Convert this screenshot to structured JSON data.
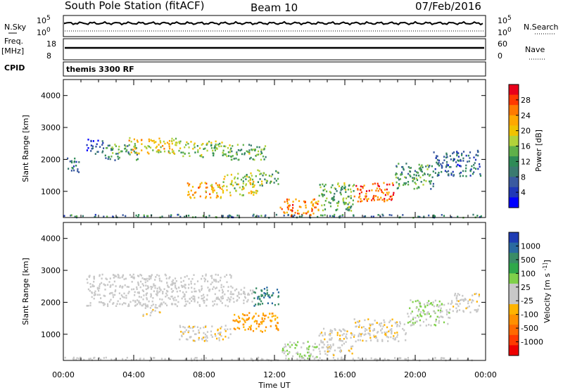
{
  "header": {
    "title": "South Pole Station (fitACF)",
    "beam": "Beam 10",
    "date": "07/Feb/2016"
  },
  "panels": {
    "nsky": {
      "label": "N.Sky",
      "left_ticks": [
        "10^5",
        "10^0"
      ],
      "right_label": "N.Search",
      "right_ticks": [
        "10^5",
        "10^0"
      ]
    },
    "freq": {
      "label_top": "Freq.",
      "label_unit": "[MHz]",
      "left_ticks": [
        "18",
        "8"
      ],
      "right_label": "Nave",
      "right_ticks": [
        "60",
        "0"
      ]
    },
    "cpid": {
      "label": "CPID",
      "value": "themis 3300 RF"
    }
  },
  "colorbars": {
    "power": {
      "label": "Power [dB]",
      "ticks": [
        "28",
        "24",
        "20",
        "16",
        "12",
        "8",
        "4"
      ],
      "colors": [
        "#e8001a",
        "#ff3a00",
        "#ff7a00",
        "#ffa800",
        "#f0c200",
        "#b2d23a",
        "#5fb04a",
        "#2e8b57",
        "#3a7a70",
        "#3a5aa0",
        "#2038b8",
        "#0000ff"
      ]
    },
    "velocity": {
      "label": "Velocity [m s^-1]",
      "ticks": [
        "1000",
        "500",
        "100",
        "25",
        "-25",
        "-100",
        "-500",
        "-1000"
      ],
      "colors": [
        "#1e3cb4",
        "#2a6aa0",
        "#3a8c66",
        "#2fa84a",
        "#7fd04a",
        "#c8c8c8",
        "#c8c8c8",
        "#ffb400",
        "#ff9000",
        "#ff6a00",
        "#ff3a00",
        "#ee0000"
      ]
    }
  },
  "axes": {
    "ylabel": "Slant Range [km]",
    "yticks": [
      "4000",
      "3000",
      "2000",
      "1000"
    ],
    "xticks": [
      "00:00",
      "04:00",
      "08:00",
      "12:00",
      "16:00",
      "20:00",
      "00:00"
    ],
    "xlabel": "Time UT"
  },
  "chart_data": [
    {
      "type": "heatmap",
      "name": "Power",
      "x_range_hours": [
        0,
        24
      ],
      "y_range_km": [
        180,
        4500
      ],
      "value_unit": "dB",
      "blobs": [
        {
          "t0": 0.2,
          "t1": 0.9,
          "r0": 1600,
          "r1": 2100,
          "value": 8
        },
        {
          "t0": 1.3,
          "t1": 2.3,
          "r0": 2200,
          "r1": 2650,
          "value": 6
        },
        {
          "t0": 2.3,
          "t1": 4.2,
          "r0": 2000,
          "r1": 2500,
          "value": 12
        },
        {
          "t0": 3.7,
          "t1": 6.5,
          "r0": 2200,
          "r1": 2700,
          "value": 20
        },
        {
          "t0": 6.5,
          "t1": 9.5,
          "r0": 2100,
          "r1": 2600,
          "value": 16
        },
        {
          "t0": 9.5,
          "t1": 11.5,
          "r0": 2000,
          "r1": 2500,
          "value": 14
        },
        {
          "t0": 7.0,
          "t1": 9.0,
          "r0": 800,
          "r1": 1300,
          "value": 22
        },
        {
          "t0": 9.0,
          "t1": 11.0,
          "r0": 900,
          "r1": 1600,
          "value": 18
        },
        {
          "t0": 11.0,
          "t1": 12.2,
          "r0": 1200,
          "r1": 1700,
          "value": 14
        },
        {
          "t0": 12.3,
          "t1": 14.5,
          "r0": 250,
          "r1": 800,
          "value": 24
        },
        {
          "t0": 14.5,
          "t1": 16.5,
          "r0": 400,
          "r1": 1300,
          "value": 14
        },
        {
          "t0": 16.5,
          "t1": 18.8,
          "r0": 700,
          "r1": 1300,
          "value": 26
        },
        {
          "t0": 18.8,
          "t1": 21.0,
          "r0": 1100,
          "r1": 1900,
          "value": 12
        },
        {
          "t0": 21.0,
          "t1": 23.7,
          "r0": 1500,
          "r1": 2300,
          "value": 8
        },
        {
          "t0": 0.0,
          "t1": 24.0,
          "r0": 180,
          "r1": 300,
          "value": 10
        }
      ]
    },
    {
      "type": "heatmap",
      "name": "Velocity",
      "x_range_hours": [
        0,
        24
      ],
      "y_range_km": [
        180,
        4500
      ],
      "value_unit": "m s^-1",
      "blobs": [
        {
          "t0": 1.3,
          "t1": 9.5,
          "r0": 1900,
          "r1": 2900,
          "value": 0
        },
        {
          "t0": 9.5,
          "t1": 10.8,
          "r0": 2000,
          "r1": 2500,
          "value": 0
        },
        {
          "t0": 10.8,
          "t1": 12.2,
          "r0": 1900,
          "r1": 2500,
          "value": 700
        },
        {
          "t0": 4.5,
          "t1": 5.5,
          "r0": 1600,
          "r1": 1900,
          "value": -120
        },
        {
          "t0": 6.5,
          "t1": 9.5,
          "r0": 800,
          "r1": 1300,
          "value": -120
        },
        {
          "t0": 9.5,
          "t1": 12.2,
          "r0": 1100,
          "r1": 1700,
          "value": -400
        },
        {
          "t0": 12.4,
          "t1": 14.5,
          "r0": 250,
          "r1": 800,
          "value": 200
        },
        {
          "t0": 14.5,
          "t1": 16.5,
          "r0": 300,
          "r1": 1200,
          "value": -90
        },
        {
          "t0": 16.5,
          "t1": 19.5,
          "r0": 800,
          "r1": 1500,
          "value": -100
        },
        {
          "t0": 19.5,
          "t1": 22.0,
          "r0": 1300,
          "r1": 2100,
          "value": 150
        },
        {
          "t0": 22.0,
          "t1": 23.6,
          "r0": 1700,
          "r1": 2300,
          "value": -60
        },
        {
          "t0": 0.0,
          "t1": 24.0,
          "r0": 180,
          "r1": 300,
          "value": 30
        }
      ]
    }
  ]
}
